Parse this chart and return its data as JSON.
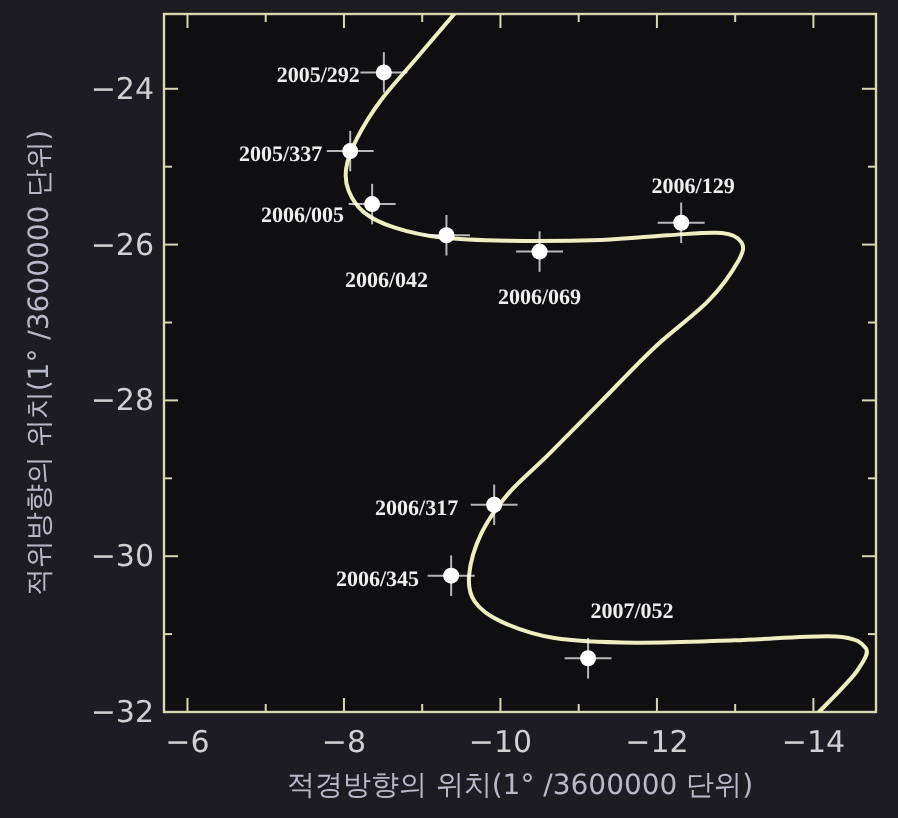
{
  "chart_data": {
    "type": "scatter",
    "xlabel": "적경방향의 위치(1° /3600000 단위)",
    "ylabel": "적위방향의 위치(1° /3600000 단위)",
    "xlim": [
      -5.7,
      -14.8
    ],
    "ylim": [
      -32,
      -23.04
    ],
    "xticks": [
      -6,
      {
        "value": -7,
        "label": null
      },
      -8,
      {
        "value": -9,
        "label": null
      },
      -10,
      {
        "value": -11,
        "label": null
      },
      -12,
      {
        "value": -13,
        "label": null
      },
      -14
    ],
    "yticks": [
      -24,
      {
        "value": -25,
        "label": null
      },
      -26,
      {
        "value": -27,
        "label": null
      },
      -28,
      {
        "value": -29,
        "label": null
      },
      -30,
      {
        "value": -31,
        "label": null
      },
      -32
    ],
    "grid": false,
    "series": [
      {
        "type": "line",
        "color": "#eeeec0",
        "marker": "none",
        "line_style": "solid",
        "x": [
          -9.41,
          -8.9,
          -8.47,
          -8.17,
          -8.03,
          -8.06,
          -8.26,
          -8.64,
          -9.24,
          -10.09,
          -11.29,
          -12.14,
          -12.83,
          -13.08,
          -13.04,
          -12.66,
          -11.97,
          -11.29,
          -10.61,
          -10.09,
          -9.75,
          -9.6,
          -9.67,
          -10.01,
          -10.69,
          -11.72,
          -13.0,
          -14.28,
          -14.67,
          -14.58,
          -14.37,
          -14.07
        ],
        "values": [
          -23.04,
          -23.64,
          -24.15,
          -24.63,
          -25.01,
          -25.31,
          -25.59,
          -25.78,
          -25.91,
          -25.95,
          -25.94,
          -25.88,
          -25.85,
          -25.97,
          -26.21,
          -26.72,
          -27.32,
          -28.01,
          -28.7,
          -29.21,
          -29.72,
          -30.24,
          -30.58,
          -30.84,
          -31.05,
          -31.11,
          -31.08,
          -31.03,
          -31.18,
          -31.44,
          -31.69,
          -32.0
        ]
      },
      {
        "color": "#ffffff",
        "marker": "circle",
        "x": [
          -8.51,
          -8.08,
          -8.36,
          -9.31,
          -10.5,
          -12.31,
          -9.92,
          -9.37,
          -11.12
        ],
        "values": [
          -23.79,
          -24.8,
          -25.48,
          -25.88,
          -26.09,
          -25.72,
          -29.34,
          -30.25,
          -31.31
        ],
        "errors": [
          0.26,
          0.26,
          0.26,
          0.26,
          0.26,
          0.26,
          0.26,
          0.26,
          0.26
        ],
        "xerrors": [
          0.3,
          0.3,
          0.3,
          0.3,
          0.3,
          0.3,
          0.3,
          0.3,
          0.3
        ]
      }
    ],
    "annotations": [
      {
        "text": "2005/292",
        "x": -8.51,
        "y": -23.79
      },
      {
        "text": "2005/337",
        "x": -8.08,
        "y": -24.8
      },
      {
        "text": "2006/005",
        "x": -8.36,
        "y": -25.48
      },
      {
        "text": "2006/042",
        "x": -9.31,
        "y": -25.88
      },
      {
        "text": "2006/069",
        "x": -10.5,
        "y": -26.09
      },
      {
        "text": "2006/129",
        "x": -12.31,
        "y": -25.72
      },
      {
        "text": "2006/317",
        "x": -9.92,
        "y": -29.34
      },
      {
        "text": "2006/345",
        "x": -9.37,
        "y": -30.25
      },
      {
        "text": "2007/052",
        "x": -11.12,
        "y": -31.31
      }
    ]
  }
}
